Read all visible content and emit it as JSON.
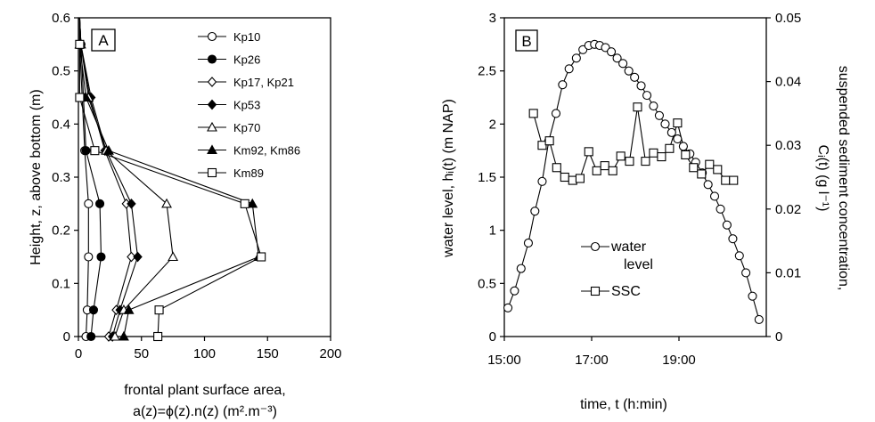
{
  "chart_data": [
    {
      "type": "line",
      "panel_label": "A",
      "title": "",
      "xlabel_lines": [
        "frontal plant surface area,",
        "a(z)=ϕ(z).n(z) (m².m⁻³)"
      ],
      "ylabel": "Height, z, above bottom (m)",
      "xlim": [
        0,
        200
      ],
      "ylim": [
        0,
        0.6
      ],
      "xticks": [
        0,
        50,
        100,
        150,
        200
      ],
      "yticks": [
        0,
        0.1,
        0.2,
        0.3,
        0.4,
        0.5,
        0.6
      ],
      "xtick_labels": [
        "0",
        "50",
        "100",
        "150",
        "200"
      ],
      "ytick_labels": [
        "0",
        "0.1",
        "0.2",
        "0.3",
        "0.4",
        "0.5",
        "0.6"
      ],
      "legend_position": "top-right",
      "series": [
        {
          "name": "Kp10",
          "marker": "circle-open",
          "y": [
            0,
            0.05,
            0.15,
            0.25,
            0.35,
            0.45,
            0.55,
            0.6
          ],
          "x": [
            6,
            7,
            8,
            8,
            5,
            3,
            1,
            1
          ]
        },
        {
          "name": "Kp26",
          "marker": "circle-filled",
          "y": [
            0,
            0.05,
            0.15,
            0.25,
            0.35,
            0.45,
            0.55,
            0.6
          ],
          "x": [
            10,
            12,
            18,
            17,
            6,
            4,
            2,
            1
          ]
        },
        {
          "name": "Kp17, Kp21",
          "marker": "diamond-open",
          "y": [
            0,
            0.05,
            0.15,
            0.25,
            0.35,
            0.45,
            0.55,
            0.6
          ],
          "x": [
            24,
            30,
            42,
            38,
            21,
            9,
            2,
            1
          ]
        },
        {
          "name": "Kp53",
          "marker": "diamond-filled",
          "y": [
            0,
            0.05,
            0.15,
            0.25,
            0.35,
            0.45,
            0.55,
            0.6
          ],
          "x": [
            27,
            33,
            47,
            42,
            22,
            10,
            2,
            1
          ]
        },
        {
          "name": "Kp70",
          "marker": "triangle-open",
          "y": [
            0,
            0.05,
            0.15,
            0.25,
            0.35,
            0.45,
            0.55,
            0.6
          ],
          "x": [
            29,
            36,
            75,
            70,
            22,
            8,
            2,
            1
          ]
        },
        {
          "name": "Km92, Km86",
          "marker": "triangle-filled",
          "y": [
            0,
            0.05,
            0.15,
            0.25,
            0.35,
            0.45,
            0.55,
            0.6
          ],
          "x": [
            36,
            40,
            143,
            138,
            24,
            6,
            1,
            1
          ]
        },
        {
          "name": "Km89",
          "marker": "square-open",
          "y": [
            0,
            0.05,
            0.15,
            0.25,
            0.35,
            0.45,
            0.55,
            0.6
          ],
          "x": [
            63,
            64,
            145,
            132,
            13,
            1,
            1,
            1
          ]
        }
      ]
    },
    {
      "type": "line",
      "panel_label": "B",
      "title": "",
      "xlabel": "time, t (h:min)",
      "ylabel": "water level, hᵢ(t) (m NAP)",
      "y2label_lines": [
        "suspended sediment concentration,",
        "Cᵢ(t) (g l⁻¹)"
      ],
      "xlim": [
        900,
        1260
      ],
      "xticks": [
        900,
        1020,
        1140
      ],
      "xtick_labels": [
        "15:00",
        "17:00",
        "19:00"
      ],
      "ylim": [
        0,
        3
      ],
      "yticks": [
        0,
        0.5,
        1,
        1.5,
        2,
        2.5,
        3
      ],
      "ytick_labels": [
        "0",
        "0.5",
        "1",
        "1.5",
        "2",
        "2.5",
        "3"
      ],
      "y2lim": [
        0,
        0.05
      ],
      "y2ticks": [
        0,
        0.01,
        0.02,
        0.03,
        0.04,
        0.05
      ],
      "y2tick_labels": [
        "0",
        "0.01",
        "0.02",
        "0.03",
        "0.04",
        "0.05"
      ],
      "legend_position": "bottom-center",
      "series": [
        {
          "name": "water",
          "name2": "level",
          "axis": "left",
          "marker": "circle-open",
          "x": [
            905,
            914,
            923,
            933,
            942,
            952,
            961,
            971,
            980,
            989,
            999,
            1008,
            1016,
            1024,
            1031,
            1039,
            1047,
            1055,
            1063,
            1071,
            1079,
            1088,
            1096,
            1105,
            1113,
            1121,
            1130,
            1138,
            1146,
            1155,
            1163,
            1172,
            1180,
            1189,
            1197,
            1206,
            1214,
            1223,
            1232,
            1241,
            1250
          ],
          "y": [
            0.27,
            0.43,
            0.64,
            0.88,
            1.18,
            1.46,
            1.84,
            2.1,
            2.37,
            2.52,
            2.62,
            2.7,
            2.74,
            2.75,
            2.74,
            2.72,
            2.68,
            2.62,
            2.57,
            2.5,
            2.44,
            2.36,
            2.27,
            2.17,
            2.08,
            2.0,
            1.92,
            1.86,
            1.79,
            1.72,
            1.64,
            1.54,
            1.43,
            1.32,
            1.2,
            1.05,
            0.92,
            0.76,
            0.6,
            0.38,
            0.16
          ]
        },
        {
          "name": "SSC",
          "axis": "right",
          "marker": "square-open",
          "x": [
            940,
            952,
            962,
            972,
            983,
            994,
            1004,
            1016,
            1027,
            1038,
            1049,
            1060,
            1072,
            1083,
            1094,
            1105,
            1116,
            1127,
            1138,
            1149,
            1160,
            1171,
            1182,
            1193,
            1204,
            1215
          ],
          "y": [
            0.035,
            0.03,
            0.0307,
            0.0265,
            0.025,
            0.0245,
            0.0248,
            0.029,
            0.026,
            0.0268,
            0.026,
            0.0283,
            0.0275,
            0.036,
            0.0275,
            0.0288,
            0.0282,
            0.0295,
            0.0335,
            0.0285,
            0.0265,
            0.0255,
            0.027,
            0.0262,
            0.0245,
            0.0245
          ]
        }
      ]
    }
  ]
}
